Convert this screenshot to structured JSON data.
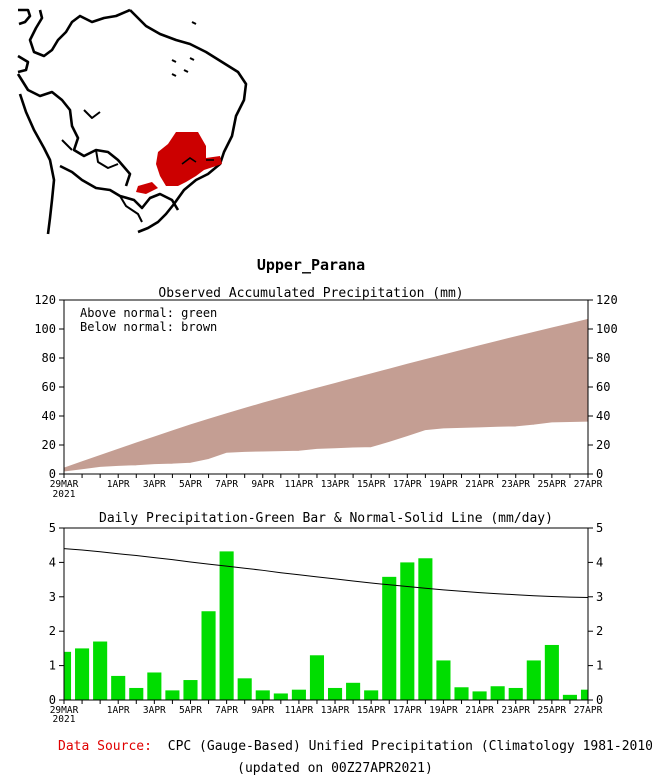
{
  "region_name": "Upper_Parana",
  "colors": {
    "region_fill": "#cc0000",
    "above_normal": "#008000",
    "below_normal": "#c49e93",
    "bar": "#00dd00",
    "source_label": "#e00000"
  },
  "accumulated": {
    "title": "Observed Accumulated Precipitation (mm)",
    "legend_above": "Above normal: green",
    "legend_below": "Below normal: brown",
    "y_ticks": [
      "0",
      "20",
      "40",
      "60",
      "80",
      "100",
      "120"
    ],
    "x_ticks": [
      "29MAR",
      "1APR",
      "3APR",
      "5APR",
      "7APR",
      "9APR",
      "11APR",
      "13APR",
      "15APR",
      "17APR",
      "19APR",
      "21APR",
      "23APR",
      "25APR",
      "27APR"
    ],
    "x_year": "2021"
  },
  "daily": {
    "title": "Daily Precipitation-Green Bar & Normal-Solid Line (mm/day)",
    "y_ticks": [
      "0",
      "1",
      "2",
      "3",
      "4",
      "5"
    ],
    "x_ticks": [
      "29MAR",
      "1APR",
      "3APR",
      "5APR",
      "7APR",
      "9APR",
      "11APR",
      "13APR",
      "15APR",
      "17APR",
      "19APR",
      "21APR",
      "23APR",
      "25APR",
      "27APR"
    ],
    "x_year": "2021"
  },
  "chart_data": [
    {
      "type": "area",
      "title": "Observed Accumulated Precipitation (mm)",
      "xlabel": "",
      "ylabel": "mm",
      "ylim": [
        0,
        120
      ],
      "x_days": [
        0,
        1,
        2,
        3,
        4,
        5,
        6,
        7,
        8,
        9,
        10,
        11,
        12,
        13,
        14,
        15,
        16,
        17,
        18,
        19,
        20,
        21,
        22,
        23,
        24,
        25,
        26,
        27,
        28,
        29
      ],
      "series": [
        {
          "name": "Observed",
          "values": [
            1.4,
            2.9,
            4.6,
            5.3,
            5.7,
            6.5,
            6.8,
            7.4,
            10.0,
            14.3,
            14.9,
            15.2,
            15.4,
            15.7,
            17.0,
            17.4,
            17.9,
            18.2,
            21.8,
            25.8,
            29.9,
            31.1,
            31.5,
            31.8,
            32.2,
            32.5,
            33.7,
            35.3,
            35.5,
            35.8
          ]
        },
        {
          "name": "Normal",
          "values": [
            4.4,
            8.8,
            13.1,
            17.4,
            21.7,
            25.9,
            30.1,
            34.2,
            38.1,
            41.9,
            45.6,
            49.2,
            52.7,
            56.1,
            59.5,
            62.8,
            66.1,
            69.4,
            72.7,
            76.0,
            79.2,
            82.4,
            85.6,
            88.8,
            91.9,
            95.0,
            98.0,
            101.0,
            104.0,
            107.0
          ]
        }
      ]
    },
    {
      "type": "bar",
      "title": "Daily Precipitation-Green Bar & Normal-Solid Line (mm/day)",
      "xlabel": "",
      "ylabel": "mm/day",
      "ylim": [
        0,
        5
      ],
      "x_days": [
        0,
        1,
        2,
        3,
        4,
        5,
        6,
        7,
        8,
        9,
        10,
        11,
        12,
        13,
        14,
        15,
        16,
        17,
        18,
        19,
        20,
        21,
        22,
        23,
        24,
        25,
        26,
        27,
        28,
        29
      ],
      "series": [
        {
          "name": "Daily Precipitation",
          "values": [
            1.4,
            1.5,
            1.7,
            0.7,
            0.35,
            0.8,
            0.28,
            0.58,
            2.58,
            4.32,
            0.63,
            0.28,
            0.19,
            0.3,
            1.3,
            0.35,
            0.5,
            0.28,
            3.58,
            4.0,
            4.12,
            1.15,
            0.37,
            0.25,
            0.4,
            0.35,
            1.15,
            1.6,
            0.15,
            0.3
          ]
        },
        {
          "name": "Normal",
          "values": [
            4.4,
            4.36,
            4.31,
            4.25,
            4.2,
            4.14,
            4.08,
            4.01,
            3.95,
            3.89,
            3.83,
            3.77,
            3.7,
            3.64,
            3.58,
            3.52,
            3.46,
            3.4,
            3.35,
            3.3,
            3.25,
            3.2,
            3.16,
            3.12,
            3.09,
            3.06,
            3.03,
            3.01,
            2.99,
            2.98
          ]
        }
      ]
    }
  ],
  "footer": {
    "source_label": "Data Source:",
    "source_text": "CPC (Gauge-Based) Unified Precipitation (Climatology 1981-2010)",
    "updated": "(updated on 00Z27APR2021)"
  }
}
